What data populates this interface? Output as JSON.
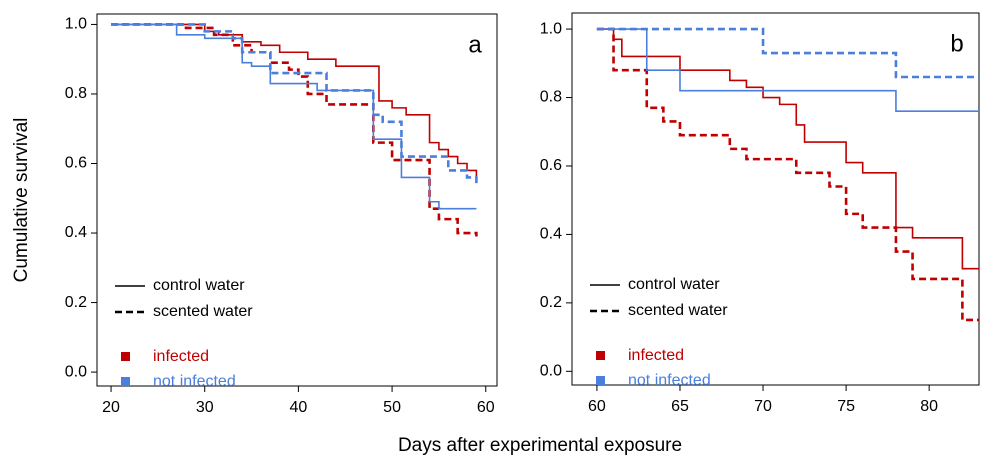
{
  "ylabel": "Cumulative survival",
  "xlabel": "Days after experimental exposure",
  "chart_data": [
    {
      "type": "step",
      "label": "a",
      "xlim": [
        18.5,
        61.2
      ],
      "ylim": [
        -0.04,
        1.03
      ],
      "xticks": [
        20,
        30,
        40,
        50,
        60
      ],
      "yticks": [
        {
          "value": 0,
          "label": "0.0"
        },
        {
          "value": 0.2,
          "label": "0.2"
        },
        {
          "value": 0.4,
          "label": "0.4"
        },
        {
          "value": 0.6,
          "label": "0.6"
        },
        {
          "value": 0.8,
          "label": "0.8"
        },
        {
          "value": 1,
          "label": "1.0"
        }
      ],
      "line_legend": [
        {
          "label": "control water",
          "dash": "solid"
        },
        {
          "label": "scented water",
          "dash": "dashed"
        }
      ],
      "color_legend": [
        {
          "label": "infected",
          "color": "#c00000"
        },
        {
          "label": "not infected",
          "color": "#4a7fdc"
        }
      ],
      "series": [
        {
          "color": "#c00000",
          "dash": "solid",
          "x": [
            20,
            30,
            31.5,
            34,
            36,
            38,
            41,
            44,
            48.6,
            50,
            51.5,
            54,
            55,
            56,
            57,
            58,
            59
          ],
          "values": [
            1.0,
            0.98,
            0.97,
            0.95,
            0.94,
            0.92,
            0.9,
            0.88,
            0.78,
            0.76,
            0.74,
            0.66,
            0.64,
            0.62,
            0.6,
            0.58,
            0.55
          ]
        },
        {
          "color": "#c00000",
          "dash": "dashed",
          "x": [
            20,
            28,
            31,
            33,
            35,
            37,
            39,
            40,
            41,
            43,
            48,
            50,
            54,
            55,
            57,
            59
          ],
          "values": [
            1.0,
            0.99,
            0.97,
            0.94,
            0.92,
            0.89,
            0.87,
            0.85,
            0.8,
            0.77,
            0.66,
            0.61,
            0.47,
            0.44,
            0.4,
            0.39
          ]
        },
        {
          "color": "#4a7fdc",
          "dash": "solid",
          "x": [
            20,
            27,
            30,
            34,
            35,
            37,
            42,
            48,
            51,
            54,
            55,
            59
          ],
          "values": [
            1.0,
            0.97,
            0.96,
            0.89,
            0.88,
            0.83,
            0.81,
            0.67,
            0.56,
            0.49,
            0.47,
            0.47
          ]
        },
        {
          "color": "#4a7fdc",
          "dash": "dashed",
          "x": [
            20,
            30,
            33,
            34,
            37,
            43,
            48,
            49,
            51,
            56,
            58,
            59
          ],
          "values": [
            1.0,
            0.98,
            0.96,
            0.92,
            0.86,
            0.81,
            0.74,
            0.72,
            0.62,
            0.58,
            0.56,
            0.54
          ]
        }
      ]
    },
    {
      "type": "step",
      "label": "b",
      "xlim": [
        58.5,
        83.0
      ],
      "ylim": [
        -0.04,
        1.047
      ],
      "xticks": [
        60,
        65,
        70,
        75,
        80
      ],
      "yticks": [
        {
          "value": 0,
          "label": "0.0"
        },
        {
          "value": 0.2,
          "label": "0.2"
        },
        {
          "value": 0.4,
          "label": "0.4"
        },
        {
          "value": 0.6,
          "label": "0.6"
        },
        {
          "value": 0.8,
          "label": "0.8"
        },
        {
          "value": 1,
          "label": "1.0"
        }
      ],
      "line_legend": [
        {
          "label": "control water",
          "dash": "solid"
        },
        {
          "label": "scented water",
          "dash": "dashed"
        }
      ],
      "color_legend": [
        {
          "label": "infected",
          "color": "#c00000"
        },
        {
          "label": "not infected",
          "color": "#4a7fdc"
        }
      ],
      "series": [
        {
          "color": "#c00000",
          "dash": "solid",
          "x": [
            60,
            61,
            61.5,
            65,
            68,
            69,
            70,
            71,
            72,
            72.5,
            75,
            76,
            78,
            79,
            82,
            83
          ],
          "values": [
            1.0,
            0.97,
            0.92,
            0.88,
            0.85,
            0.83,
            0.8,
            0.78,
            0.72,
            0.67,
            0.61,
            0.58,
            0.42,
            0.39,
            0.3,
            0.3
          ]
        },
        {
          "color": "#c00000",
          "dash": "dashed",
          "x": [
            60,
            61,
            63,
            64,
            65,
            68,
            69,
            72,
            74,
            75,
            76,
            78,
            79,
            82,
            83
          ],
          "values": [
            1.0,
            0.88,
            0.77,
            0.73,
            0.69,
            0.65,
            0.62,
            0.58,
            0.54,
            0.46,
            0.42,
            0.35,
            0.27,
            0.15,
            0.15
          ]
        },
        {
          "color": "#4a7fdc",
          "dash": "solid",
          "x": [
            60,
            63,
            65,
            78,
            83
          ],
          "values": [
            1.0,
            0.88,
            0.82,
            0.76,
            0.76
          ]
        },
        {
          "color": "#4a7fdc",
          "dash": "dashed",
          "x": [
            60,
            70,
            78,
            83
          ],
          "values": [
            1.0,
            0.93,
            0.86,
            0.86
          ]
        }
      ]
    }
  ]
}
